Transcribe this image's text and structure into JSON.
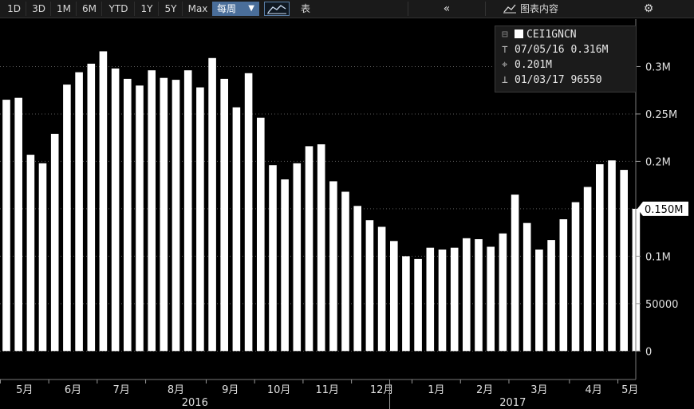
{
  "toolbar": {
    "ranges": [
      "1D",
      "3D",
      "1M",
      "6M",
      "YTD",
      "1Y",
      "5Y",
      "Max"
    ],
    "frequency": "每周",
    "table_label": "表",
    "collapse_icon": "double-chevron-left-icon",
    "content_label": "图表内容",
    "settings_icon": "gear-icon"
  },
  "legend": {
    "ticker": "CEI1GNCN",
    "high_mark": "⊤",
    "high": "07/05/16 0.316M",
    "avg_mark": "⌖",
    "avg": "0.201M",
    "low_mark": "⊥",
    "low": "01/03/17 96550"
  },
  "chart_data": {
    "type": "bar",
    "series": [
      {
        "name": "CEI1GNCN",
        "color": "#ffffff",
        "values": [
          265000,
          267000,
          207000,
          198000,
          229000,
          281000,
          294000,
          303000,
          316000,
          298000,
          287000,
          280000,
          296000,
          288000,
          286000,
          296000,
          278000,
          309000,
          287000,
          257000,
          293000,
          246000,
          196000,
          181000,
          198000,
          216000,
          218000,
          179000,
          168000,
          153000,
          138000,
          131000,
          116000,
          100000,
          97000,
          109000,
          107000,
          109000,
          119000,
          118000,
          110000,
          124000,
          165000,
          135000,
          107000,
          117000,
          139000,
          157000,
          173000,
          197000,
          201000,
          191000,
          150000
        ]
      }
    ],
    "x_month_labels": [
      "5月",
      "6月",
      "7月",
      "8月",
      "9月",
      "10月",
      "11月",
      "12月",
      "1月",
      "2月",
      "3月",
      "4月",
      "5月"
    ],
    "x_month_start_index": [
      0,
      4,
      8,
      12,
      17,
      21,
      25,
      29,
      34,
      38,
      42,
      47,
      51
    ],
    "year_labels": [
      "2016",
      "2017"
    ],
    "y_ticks": [
      0,
      50000,
      100000,
      150000,
      200000,
      250000,
      300000
    ],
    "y_tick_labels": [
      "0",
      "50000",
      "0.1M",
      "0.150M",
      "0.2M",
      "0.25M",
      "0.3M"
    ],
    "ylim": [
      -30000,
      350000
    ],
    "last_value_label": "0.150M",
    "grid": true,
    "legend_position": "top-right"
  }
}
